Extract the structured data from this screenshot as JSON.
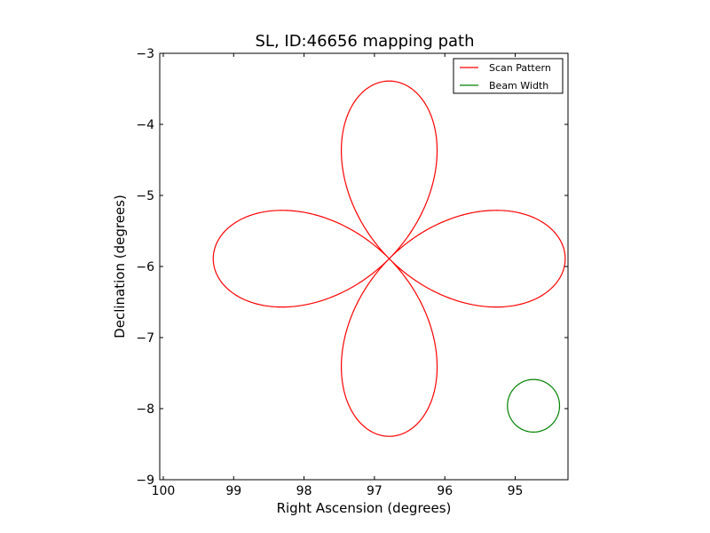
{
  "chart_data": {
    "type": "line",
    "title": "SL, ID:46656 mapping path",
    "xlabel": "Right Ascension (degrees)",
    "ylabel": "Declination (degrees)",
    "xlim": [
      100.05,
      94.25
    ],
    "ylim": [
      -9,
      -3
    ],
    "x_ticks": [
      100,
      99,
      98,
      97,
      96,
      95
    ],
    "x_tick_labels": [
      "100",
      "99",
      "98",
      "97",
      "96",
      "95"
    ],
    "y_ticks": [
      -9,
      -8,
      -7,
      -6,
      -5,
      -4,
      -3
    ],
    "y_tick_labels": [
      "−9",
      "−8",
      "−7",
      "−6",
      "−5",
      "−4",
      "−3"
    ],
    "grid": false,
    "legend": {
      "position": "top-right"
    },
    "series": [
      {
        "name": "Scan Pattern",
        "color": "#ff0000",
        "shape": "four-petal rose",
        "center": [
          96.79,
          -5.89
        ],
        "radius_deg": 2.5
      },
      {
        "name": "Beam Width",
        "color": "#008000",
        "shape": "circle",
        "center": [
          94.74,
          -7.96
        ],
        "radius_deg": 0.37
      }
    ]
  }
}
